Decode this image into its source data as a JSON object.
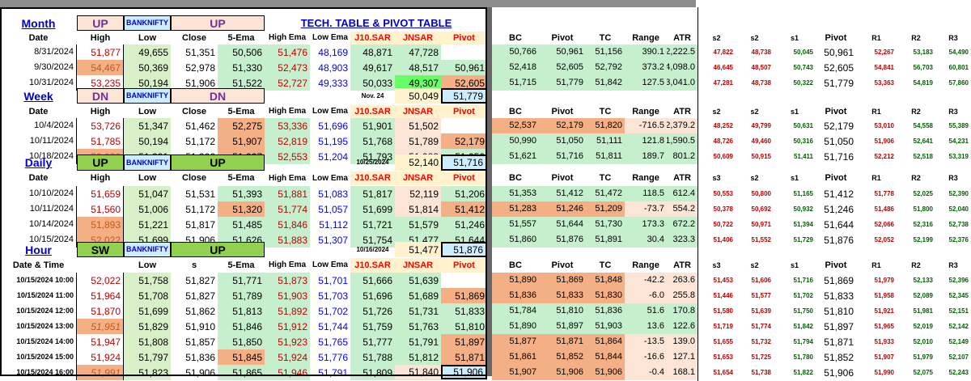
{
  "colors": {
    "green": "#c6efce",
    "lightgreen": "#d8f0c8",
    "red": "#c00000",
    "orange": "#f4b084",
    "peach": "#fce4d6",
    "yellow": "#ffff00",
    "lightyellow": "#fff2cc",
    "blue": "#0000ff",
    "purple": "#7030a0",
    "boxblue": "#ccecff",
    "bright_green": "#66ff66",
    "olive": "#92d050"
  },
  "title": "TECH. TABLE  &  PIVOT TABLE",
  "cols_left": [
    "Date",
    "High",
    "Low",
    "Close",
    "5-Ema",
    "High Ema",
    "Low Ema",
    "J10.SAR",
    "JNSAR",
    "Pivot"
  ],
  "cols_right": [
    "BC",
    "Pivot",
    "TC",
    "Range",
    "ATR",
    "s2",
    "s2",
    "s1",
    "Pivot",
    "R1",
    "R2",
    "R3"
  ],
  "cols_right_daily": [
    "BC",
    "Pivot",
    "TC",
    "Range",
    "ATR",
    "s3",
    "s2",
    "s1",
    "Pivot",
    "R1",
    "R2",
    "R3"
  ],
  "month": {
    "label": "Month",
    "trend": "UP",
    "symbol": "BANKNIFTY",
    "trend2": "UP",
    "rows": [
      {
        "date": "8/31/2024",
        "high": "51,877",
        "low": "49,655",
        "close": "51,351",
        "ema5": "50,506",
        "hema": "51,476",
        "lema": "48,169",
        "j10": "48,871",
        "jn": "47,728",
        "pivot": "",
        "bc": "50,766",
        "pv": "50,961",
        "tc": "51,156",
        "range": "390.1",
        "atr": "2,222.5",
        "s3": "47,822",
        "s2": "48,738",
        "s1": "50,045",
        "p2": "50,961",
        "r1": "52,267",
        "r2": "53,183",
        "r3": "54,490"
      },
      {
        "date": "9/30/2024",
        "high": "54,467",
        "low": "50,369",
        "close": "52,978",
        "ema5": "51,330",
        "hema": "52,473",
        "lema": "48,903",
        "j10": "49,617",
        "jn": "48,517",
        "pivot": "50,961",
        "bc": "52,418",
        "pv": "52,605",
        "tc": "52,792",
        "range": "373.2",
        "atr": "4,098.0",
        "s3": "46,645",
        "s2": "48,507",
        "s1": "50,743",
        "p2": "52,605",
        "r1": "54,841",
        "r2": "56,703",
        "r3": "60,801"
      },
      {
        "date": "10/31/2024",
        "high": "53,235",
        "low": "50,194",
        "close": "51,906",
        "ema5": "51,522",
        "hema": "52,727",
        "lema": "49,333",
        "j10": "50,033",
        "jn": "49,307",
        "pivot": "52,605",
        "bc": "51,715",
        "pv": "51,779",
        "tc": "51,842",
        "range": "127.5",
        "atr": "3,041.0",
        "s3": "47,281",
        "s2": "48,738",
        "s1": "50,322",
        "p2": "51,779",
        "r1": "53,363",
        "r2": "54,819",
        "r3": "57,860"
      }
    ]
  },
  "week": {
    "label": "Week",
    "trend": "DN",
    "symbol": "BANKNIFTY",
    "trend2": "DN",
    "summary_label": "Nov. 24",
    "summary_val": "50,049",
    "summary_pivot": "51,779",
    "rows": [
      {
        "date": "10/4/2024",
        "high": "53,726",
        "low": "51,347",
        "close": "51,462",
        "ema5": "52,275",
        "hema": "53,336",
        "lema": "51,696",
        "j10": "51,901",
        "jn": "51,502",
        "pivot": "",
        "bc": "52,537",
        "pv": "52,179",
        "tc": "51,820",
        "range": "-716.5",
        "atr": "2,379.2",
        "s3": "48,252",
        "s2": "49,799",
        "s1": "50,631",
        "p2": "52,179",
        "r1": "53,010",
        "r2": "54,558",
        "r3": "55,389"
      },
      {
        "date": "10/11/2024",
        "high": "51,785",
        "low": "50,194",
        "close": "51,172",
        "ema5": "51,907",
        "hema": "52,819",
        "lema": "51,195",
        "j10": "51,768",
        "jn": "51,789",
        "pivot": "52,179",
        "bc": "50,990",
        "pv": "51,050",
        "tc": "51,111",
        "range": "121.8",
        "atr": "1,590.5",
        "s3": "48,726",
        "s2": "49,460",
        "s1": "50,316",
        "p2": "51,050",
        "r1": "51,906",
        "r2": "52,641",
        "r3": "54,231"
      },
      {
        "date": "10/18/2024",
        "high": "52,022",
        "low": "51,221",
        "close": "51,906",
        "ema5": "51,907",
        "hema": "52,553",
        "lema": "51,204",
        "j10": "51,793",
        "jn": "51,988",
        "pivot": "51,050",
        "bc": "51,621",
        "pv": "51,716",
        "tc": "51,811",
        "range": "189.7",
        "atr": "801.2",
        "s3": "50,609",
        "s2": "50,915",
        "s1": "51,411",
        "p2": "51,716",
        "r1": "52,212",
        "r2": "52,518",
        "r3": "53,319"
      }
    ]
  },
  "daily": {
    "label": "Daily",
    "trend": "UP",
    "symbol": "BANKNIFTY",
    "trend2": "UP",
    "summary_label": "10/25/2024",
    "summary_val": "52,140",
    "summary_pivot": "51,716",
    "rows": [
      {
        "date": "10/10/2024",
        "high": "51,659",
        "low": "51,047",
        "close": "51,531",
        "ema5": "51,393",
        "hema": "51,881",
        "lema": "51,083",
        "j10": "51,817",
        "jn": "52,119",
        "pivot": "51,206",
        "bc": "51,353",
        "pv": "51,412",
        "tc": "51,472",
        "range": "118.5",
        "atr": "612.4",
        "s3": "50,553",
        "s2": "50,800",
        "s1": "51,165",
        "p2": "51,412",
        "r1": "51,778",
        "r2": "52,025",
        "r3": "52,390"
      },
      {
        "date": "10/11/2024",
        "high": "51,560",
        "low": "51,006",
        "close": "51,172",
        "ema5": "51,320",
        "hema": "51,774",
        "lema": "51,057",
        "j10": "51,699",
        "jn": "51,814",
        "pivot": "51,412",
        "bc": "51,283",
        "pv": "51,246",
        "tc": "51,209",
        "range": "-73.7",
        "atr": "554.2",
        "s3": "50,378",
        "s2": "50,692",
        "s1": "50,932",
        "p2": "51,246",
        "r1": "51,486",
        "r2": "51,800",
        "r3": "52,040"
      },
      {
        "date": "10/14/2024",
        "high": "51,893",
        "low": "51,221",
        "close": "51,817",
        "ema5": "51,485",
        "hema": "51,846",
        "lema": "51,112",
        "j10": "51,721",
        "jn": "51,579",
        "pivot": "51,246",
        "bc": "51,557",
        "pv": "51,644",
        "tc": "51,730",
        "range": "173.3",
        "atr": "672.2",
        "s3": "50,722",
        "s2": "50,971",
        "s1": "51,394",
        "p2": "51,644",
        "r1": "52,066",
        "r2": "52,316",
        "r3": "52,738"
      },
      {
        "date": "10/15/2024",
        "high": "52,022",
        "low": "51,699",
        "close": "51,906",
        "ema5": "51,626",
        "hema": "51,883",
        "lema": "51,307",
        "j10": "51,754",
        "jn": "51,477",
        "pivot": "51,644",
        "bc": "51,860",
        "pv": "51,876",
        "tc": "51,891",
        "range": "30.4",
        "atr": "323.3",
        "s3": "51,406",
        "s2": "51,552",
        "s1": "51,729",
        "p2": "51,876",
        "r1": "52,052",
        "r2": "52,199",
        "r3": "52,376"
      }
    ]
  },
  "hour": {
    "label": "Hour",
    "trend": "SW",
    "symbol": "BANKNIFTY",
    "trend2": "UP",
    "summary_label": "10/16/2024",
    "summary_val": "51,477",
    "summary_pivot": "51,876",
    "date_header": "Date & Time",
    "close_header": "s",
    "rows": [
      {
        "date": "10/15/2024 10:00",
        "high": "52,022",
        "low": "51,758",
        "close": "51,827",
        "ema5": "51,771",
        "hema": "51,873",
        "lema": "51,701",
        "j10": "51,666",
        "jn": "51,639",
        "pivot": "",
        "bc": "51,890",
        "pv": "51,869",
        "tc": "51,848",
        "range": "-42.2",
        "atr": "263.6",
        "s3": "51,453",
        "s2": "51,606",
        "s1": "51,716",
        "p2": "51,869",
        "r1": "51,979",
        "r2": "52,133",
        "r3": "52,396"
      },
      {
        "date": "10/15/2024 11:00",
        "high": "51,964",
        "low": "51,708",
        "close": "51,827",
        "ema5": "51,789",
        "hema": "51,903",
        "lema": "51,703",
        "j10": "51,696",
        "jn": "51,689",
        "pivot": "51,869",
        "bc": "51,836",
        "pv": "51,833",
        "tc": "51,830",
        "range": "-6.0",
        "atr": "255.8",
        "s3": "51,446",
        "s2": "51,577",
        "s1": "51,702",
        "p2": "51,833",
        "r1": "51,958",
        "r2": "52,089",
        "r3": "52,345"
      },
      {
        "date": "10/15/2024 12:00",
        "high": "51,870",
        "low": "51,699",
        "close": "51,862",
        "ema5": "51,813",
        "hema": "51,892",
        "lema": "51,702",
        "j10": "51,726",
        "jn": "51,731",
        "pivot": "51,833",
        "bc": "51,784",
        "pv": "51,810",
        "tc": "51,836",
        "range": "51.6",
        "atr": "170.8",
        "s3": "51,580",
        "s2": "51,639",
        "s1": "51,750",
        "p2": "51,810",
        "r1": "51,921",
        "r2": "51,981",
        "r3": "52,151"
      },
      {
        "date": "10/15/2024 13:00",
        "high": "51,951",
        "low": "51,829",
        "close": "51,910",
        "ema5": "51,846",
        "hema": "51,912",
        "lema": "51,744",
        "j10": "51,759",
        "jn": "51,763",
        "pivot": "51,810",
        "bc": "51,890",
        "pv": "51,897",
        "tc": "51,903",
        "range": "13.6",
        "atr": "122.6",
        "s3": "51,719",
        "s2": "51,774",
        "s1": "51,842",
        "p2": "51,897",
        "r1": "51,965",
        "r2": "52,019",
        "r3": "52,142"
      },
      {
        "date": "10/15/2024 14:00",
        "high": "51,947",
        "low": "51,808",
        "close": "51,857",
        "ema5": "51,850",
        "hema": "51,923",
        "lema": "51,765",
        "j10": "51,777",
        "jn": "51,791",
        "pivot": "51,897",
        "bc": "51,877",
        "pv": "51,871",
        "tc": "51,864",
        "range": "-13.5",
        "atr": "139.0",
        "s3": "51,655",
        "s2": "51,732",
        "s1": "51,794",
        "p2": "51,871",
        "r1": "51,933",
        "r2": "52,010",
        "r3": "52,149"
      },
      {
        "date": "10/15/2024 15:00",
        "high": "51,924",
        "low": "51,797",
        "close": "51,836",
        "ema5": "51,845",
        "hema": "51,924",
        "lema": "51,776",
        "j10": "51,788",
        "jn": "51,812",
        "pivot": "51,871",
        "bc": "51,861",
        "pv": "51,852",
        "tc": "51,844",
        "range": "-16.6",
        "atr": "127.1",
        "s3": "51,653",
        "s2": "51,725",
        "s1": "51,780",
        "p2": "51,852",
        "r1": "51,907",
        "r2": "51,979",
        "r3": "52,107"
      },
      {
        "date": "10/15/2024 16:00",
        "high": "51,991",
        "low": "51,823",
        "close": "51,906",
        "ema5": "51,865",
        "hema": "51,946",
        "lema": "51,791",
        "j10": "51,809",
        "jn": "51,826",
        "pivot": "51,852",
        "bc": "51,907",
        "pv": "51,906",
        "tc": "51,906",
        "range": "-0.4",
        "atr": "168.1",
        "s3": "51,654",
        "s2": "51,738",
        "s1": "51,822",
        "p2": "51,906",
        "r1": "51,990",
        "r2": "52,075",
        "r3": "52,243"
      }
    ],
    "footer_val": "51,840",
    "footer_pivot": "51,906"
  }
}
